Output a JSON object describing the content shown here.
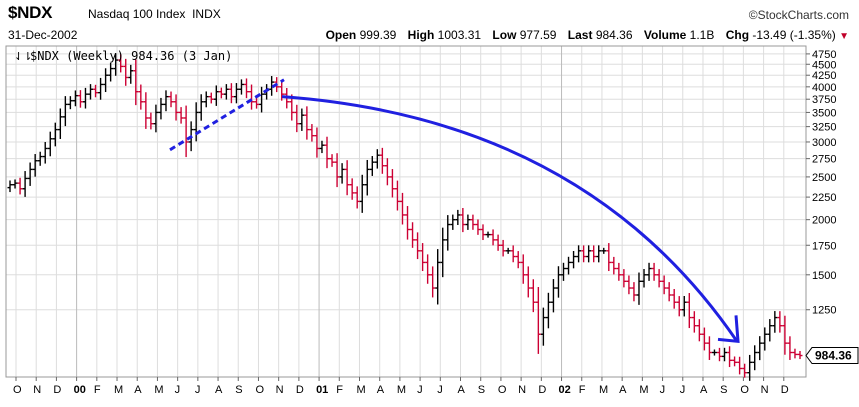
{
  "header": {
    "symbol": "$NDX",
    "name": "Nasdaq 100 Index",
    "exchange": "INDX",
    "date": "31-Dec-2002",
    "brand": "©StockCharts.com",
    "open_label": "Open",
    "open": "999.39",
    "high_label": "High",
    "high": "1003.31",
    "low_label": "Low",
    "low": "977.59",
    "last_label": "Last",
    "last": "984.36",
    "volume_label": "Volume",
    "volume": "1.1B",
    "chg_label": "Chg",
    "chg": "-13.49 (-1.35%)"
  },
  "legend": "$NDX (Weekly) 984.36 (3 Jan)",
  "price_tag": "984.36",
  "chart_data": {
    "type": "ohlc",
    "interval": "weekly",
    "y_scale": "log",
    "ylim": [
      880,
      4950
    ],
    "y_ticks": [
      1250,
      1500,
      1750,
      2000,
      2250,
      2500,
      2750,
      3000,
      3250,
      3500,
      3750,
      4000,
      4250,
      4500,
      4750
    ],
    "x_tick_labels": [
      "O",
      "N",
      "D",
      "00",
      "F",
      "M",
      "A",
      "M",
      "J",
      "J",
      "A",
      "S",
      "O",
      "N",
      "D",
      "01",
      "F",
      "M",
      "A",
      "M",
      "J",
      "J",
      "A",
      "S",
      "O",
      "N",
      "D",
      "02",
      "F",
      "M",
      "A",
      "M",
      "J",
      "J",
      "A",
      "S",
      "O",
      "N",
      "D"
    ],
    "x_tick_bold": [
      "00",
      "01",
      "02"
    ],
    "grid": true,
    "colors": {
      "up": "#000000",
      "down": "#cc0033",
      "annotation": "#2020e0",
      "grid": "#dddddd"
    },
    "close_weekly": [
      2400,
      2420,
      2350,
      2480,
      2600,
      2720,
      2780,
      2900,
      3050,
      3200,
      3420,
      3650,
      3720,
      3820,
      3700,
      3850,
      3950,
      3880,
      4050,
      4250,
      4400,
      4600,
      4450,
      4200,
      4350,
      3900,
      3700,
      3400,
      3300,
      3500,
      3650,
      3800,
      3700,
      3500,
      3400,
      3000,
      3200,
      3500,
      3700,
      3800,
      3750,
      3900,
      3850,
      3950,
      3800,
      3950,
      4050,
      3900,
      3700,
      3650,
      3850,
      3950,
      4100,
      4000,
      3850,
      3700,
      3500,
      3300,
      3450,
      3200,
      3100,
      2900,
      2950,
      2750,
      2700,
      2500,
      2600,
      2400,
      2300,
      2200,
      2400,
      2600,
      2700,
      2800,
      2650,
      2500,
      2350,
      2200,
      2050,
      1900,
      1800,
      1700,
      1600,
      1500,
      1400,
      1600,
      1800,
      1950,
      2000,
      2050,
      1950,
      2000,
      1950,
      1900,
      1850,
      1850,
      1800,
      1750,
      1700,
      1700,
      1650,
      1600,
      1500,
      1400,
      1300,
      1100,
      1200,
      1300,
      1400,
      1500,
      1550,
      1600,
      1650,
      1700,
      1650,
      1700,
      1650,
      1700,
      1700,
      1600,
      1550,
      1500,
      1450,
      1400,
      1350,
      1450,
      1500,
      1550,
      1500,
      1450,
      1400,
      1350,
      1300,
      1250,
      1300,
      1200,
      1150,
      1100,
      1050,
      1000,
      1000,
      980,
      1000,
      960,
      950,
      920,
      900,
      950,
      1000,
      1050,
      1100,
      1150,
      1200,
      1150,
      1050,
      1000,
      990,
      984.36
    ],
    "annotations": [
      {
        "type": "dashed-trendline",
        "from": [
          "2000-05",
          2880
        ],
        "to": [
          "2000-11",
          4150
        ]
      },
      {
        "type": "curved-arrow",
        "from": [
          "2000-11",
          3800
        ],
        "to": [
          "2002-10",
          1060
        ]
      }
    ]
  }
}
